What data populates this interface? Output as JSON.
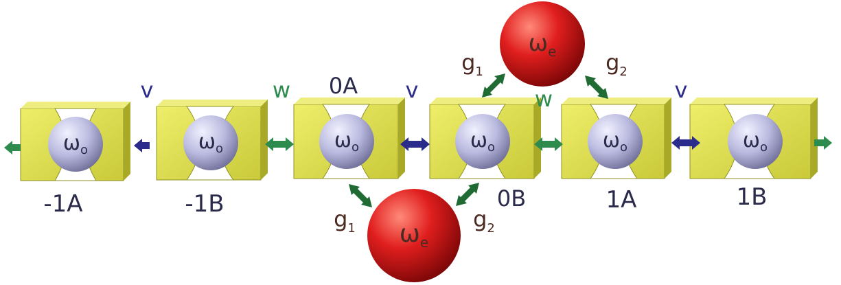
{
  "colors": {
    "cavity_face": "#d9d94a",
    "cavity_side": "#a9a928",
    "cavity_top": "#eeee80",
    "mode_sphere": "#b9b9df",
    "emitter_sphere": "#d21f1f",
    "coupling_v": "#2b2b8c",
    "coupling_w": "#2e8b4e",
    "coupling_g": "#1f6b33",
    "label_dark": "#2a2a4a",
    "label_brown": "#4a2a22"
  },
  "cavities": [
    {
      "name": "-1A",
      "mode_symbol": "ω",
      "mode_sub": "o"
    },
    {
      "name": "-1B",
      "mode_symbol": "ω",
      "mode_sub": "o"
    },
    {
      "name": "0A",
      "mode_symbol": "ω",
      "mode_sub": "o"
    },
    {
      "name": "0B",
      "mode_symbol": "ω",
      "mode_sub": "o"
    },
    {
      "name": "1A",
      "mode_symbol": "ω",
      "mode_sub": "o"
    },
    {
      "name": "1B",
      "mode_symbol": "ω",
      "mode_sub": "o"
    }
  ],
  "couplings_labels": [
    "v",
    "w",
    "v",
    "w",
    "v"
  ],
  "emitters": [
    {
      "symbol": "ω",
      "sub": "e",
      "g_left": "g",
      "g_left_sub": "1",
      "g_right": "g",
      "g_right_sub": "2"
    },
    {
      "symbol": "ω",
      "sub": "e",
      "g_left": "g",
      "g_left_sub": "1",
      "g_right": "g",
      "g_right_sub": "2"
    }
  ]
}
